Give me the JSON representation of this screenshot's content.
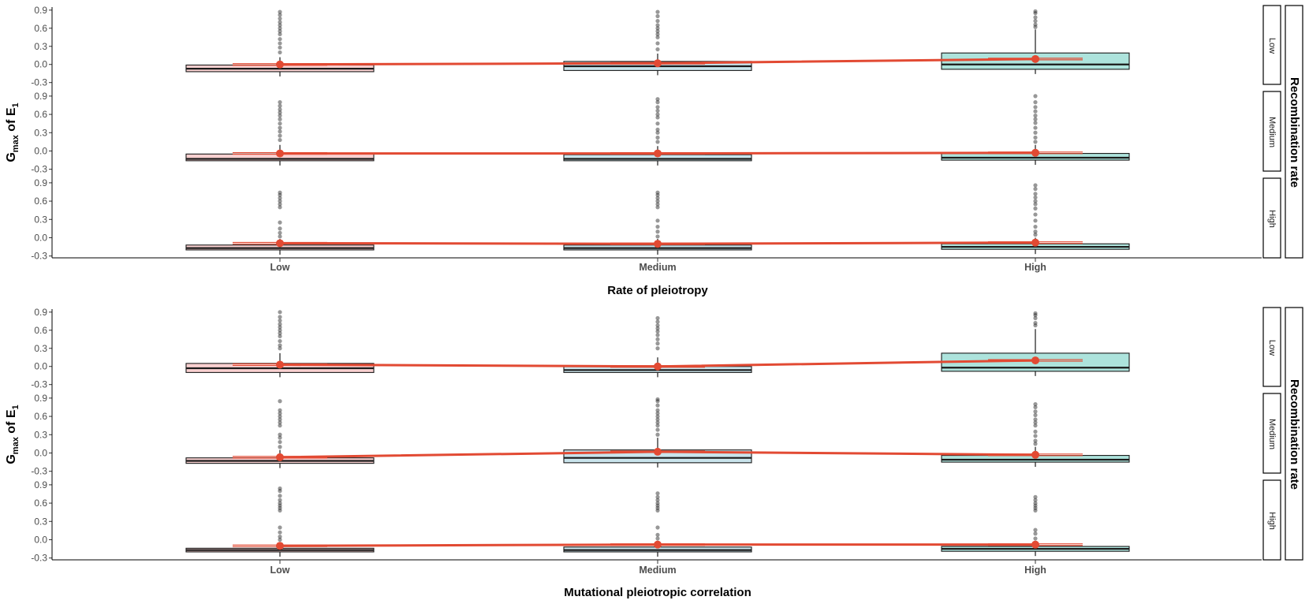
{
  "chart_data": [
    {
      "type": "box",
      "xlabel": "Rate of pleiotropy",
      "ylabel": {
        "main": "G",
        "sub": "max",
        "mid": " of ",
        "main2": "E",
        "sub2": "1"
      },
      "facet_title": "Recombination rate",
      "categories": [
        "Low",
        "Medium",
        "High"
      ],
      "yticks": [
        "0.9",
        "0.6",
        "0.3",
        "0.0",
        "-0.3"
      ],
      "ylim": [
        -0.33,
        0.95
      ],
      "colors": {
        "Low": "#f9d0d0",
        "Medium": "#c9e4ec",
        "High": "#ade3dc",
        "mean": "#e24a33"
      },
      "panels": [
        {
          "facet": "Low",
          "boxes": [
            {
              "q1": -0.12,
              "median": -0.07,
              "q3": -0.01,
              "whisker_high": 0.12,
              "mean": 0.0,
              "outliers": [
                0.2,
                0.28,
                0.35,
                0.42,
                0.5,
                0.55,
                0.6,
                0.65,
                0.7,
                0.76,
                0.82,
                0.87
              ]
            },
            {
              "q1": -0.1,
              "median": -0.03,
              "q3": 0.05,
              "whisker_high": 0.18,
              "mean": 0.02,
              "outliers": [
                0.25,
                0.35,
                0.45,
                0.5,
                0.55,
                0.6,
                0.65,
                0.72,
                0.8,
                0.87
              ]
            },
            {
              "q1": -0.08,
              "median": 0.0,
              "q3": 0.19,
              "whisker_high": 0.58,
              "mean": 0.09,
              "outliers": [
                0.62,
                0.66,
                0.72,
                0.78,
                0.85,
                0.88
              ]
            }
          ]
        },
        {
          "facet": "Medium",
          "boxes": [
            {
              "q1": -0.16,
              "median": -0.13,
              "q3": -0.05,
              "whisker_high": 0.1,
              "mean": -0.04,
              "outliers": [
                0.18,
                0.25,
                0.32,
                0.38,
                0.45,
                0.52,
                0.58,
                0.63,
                0.68,
                0.74,
                0.8
              ]
            },
            {
              "q1": -0.16,
              "median": -0.13,
              "q3": -0.06,
              "whisker_high": 0.08,
              "mean": -0.04,
              "outliers": [
                0.15,
                0.22,
                0.3,
                0.35,
                0.45,
                0.55,
                0.6,
                0.66,
                0.72,
                0.8,
                0.85
              ]
            },
            {
              "q1": -0.15,
              "median": -0.11,
              "q3": -0.04,
              "whisker_high": 0.1,
              "mean": -0.03,
              "outliers": [
                0.15,
                0.22,
                0.3,
                0.38,
                0.46,
                0.52,
                0.58,
                0.65,
                0.72,
                0.8,
                0.9
              ]
            }
          ]
        },
        {
          "facet": "High",
          "boxes": [
            {
              "q1": -0.2,
              "median": -0.17,
              "q3": -0.12,
              "whisker_high": -0.02,
              "mean": -0.09,
              "outliers": [
                0.02,
                0.08,
                0.15,
                0.25,
                0.5,
                0.55,
                0.6,
                0.65,
                0.7,
                0.74
              ]
            },
            {
              "q1": -0.2,
              "median": -0.17,
              "q3": -0.12,
              "whisker_high": -0.02,
              "mean": -0.1,
              "outliers": [
                0.02,
                0.1,
                0.18,
                0.28,
                0.5,
                0.55,
                0.6,
                0.65,
                0.7,
                0.74
              ]
            },
            {
              "q1": -0.19,
              "median": -0.15,
              "q3": -0.1,
              "whisker_high": 0.0,
              "mean": -0.08,
              "outliers": [
                0.05,
                0.1,
                0.18,
                0.28,
                0.38,
                0.48,
                0.55,
                0.6,
                0.66,
                0.72,
                0.8,
                0.86
              ]
            }
          ]
        }
      ]
    },
    {
      "type": "box",
      "xlabel": "Mutational pleiotropic correlation",
      "ylabel": {
        "main": "G",
        "sub": "max",
        "mid": " of ",
        "main2": "E",
        "sub2": "1"
      },
      "facet_title": "Recombination rate",
      "categories": [
        "Low",
        "Medium",
        "High"
      ],
      "yticks": [
        "0.9",
        "0.6",
        "0.3",
        "0.0",
        "-0.3"
      ],
      "ylim": [
        -0.33,
        0.95
      ],
      "colors": {
        "Low": "#f9d0d0",
        "Medium": "#c9e4ec",
        "High": "#ade3dc",
        "mean": "#e24a33"
      },
      "panels": [
        {
          "facet": "Low",
          "boxes": [
            {
              "q1": -0.1,
              "median": -0.03,
              "q3": 0.05,
              "whisker_high": 0.22,
              "mean": 0.03,
              "outliers": [
                0.3,
                0.35,
                0.42,
                0.5,
                0.55,
                0.6,
                0.65,
                0.7,
                0.76,
                0.82,
                0.9
              ]
            },
            {
              "q1": -0.1,
              "median": -0.06,
              "q3": 0.0,
              "whisker_high": 0.15,
              "mean": 0.0,
              "outliers": [
                0.3,
                0.38,
                0.45,
                0.52,
                0.58,
                0.63,
                0.68,
                0.74,
                0.8
              ]
            },
            {
              "q1": -0.08,
              "median": -0.02,
              "q3": 0.22,
              "whisker_high": 0.62,
              "mean": 0.1,
              "outliers": [
                0.68,
                0.72,
                0.8,
                0.85,
                0.88
              ]
            }
          ]
        },
        {
          "facet": "Medium",
          "boxes": [
            {
              "q1": -0.17,
              "median": -0.13,
              "q3": -0.08,
              "whisker_high": 0.05,
              "mean": -0.07,
              "outliers": [
                0.1,
                0.18,
                0.25,
                0.3,
                0.45,
                0.5,
                0.55,
                0.6,
                0.65,
                0.7,
                0.85
              ]
            },
            {
              "q1": -0.16,
              "median": -0.08,
              "q3": 0.05,
              "whisker_high": 0.25,
              "mean": 0.02,
              "outliers": [
                0.3,
                0.38,
                0.45,
                0.5,
                0.55,
                0.6,
                0.65,
                0.7,
                0.78,
                0.85,
                0.88
              ]
            },
            {
              "q1": -0.15,
              "median": -0.11,
              "q3": -0.04,
              "whisker_high": 0.1,
              "mean": -0.03,
              "outliers": [
                0.15,
                0.2,
                0.28,
                0.35,
                0.45,
                0.5,
                0.55,
                0.62,
                0.68,
                0.75,
                0.8
              ]
            }
          ]
        },
        {
          "facet": "High",
          "boxes": [
            {
              "q1": -0.2,
              "median": -0.17,
              "q3": -0.14,
              "whisker_high": -0.04,
              "mean": -0.1,
              "outliers": [
                0.0,
                0.05,
                0.12,
                0.2,
                0.48,
                0.52,
                0.56,
                0.6,
                0.65,
                0.72,
                0.8,
                0.84
              ]
            },
            {
              "q1": -0.2,
              "median": -0.17,
              "q3": -0.12,
              "whisker_high": -0.02,
              "mean": -0.08,
              "outliers": [
                0.02,
                0.08,
                0.2,
                0.48,
                0.52,
                0.56,
                0.6,
                0.65,
                0.7,
                0.76
              ]
            },
            {
              "q1": -0.19,
              "median": -0.15,
              "q3": -0.11,
              "whisker_high": -0.02,
              "mean": -0.08,
              "outliers": [
                0.02,
                0.1,
                0.16,
                0.48,
                0.52,
                0.56,
                0.6,
                0.65,
                0.7
              ]
            }
          ]
        }
      ]
    }
  ]
}
